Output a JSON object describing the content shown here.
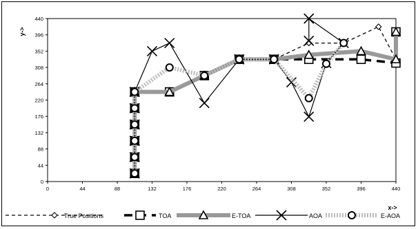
{
  "chart_data": {
    "type": "line",
    "xlabel": "x->",
    "ylabel": "y->",
    "xlim": [
      0,
      440
    ],
    "ylim": [
      0,
      440
    ],
    "xticks": [
      0,
      44,
      88,
      132,
      176,
      220,
      264,
      308,
      352,
      396,
      440
    ],
    "yticks": [
      0,
      44,
      88,
      132,
      176,
      220,
      264,
      308,
      352,
      396,
      440
    ],
    "grid": false,
    "legend": "bottom",
    "series": [
      {
        "name": "True Positions",
        "style": "dashed",
        "marker": "diamond",
        "color": "#000000",
        "points": [
          [
            110,
            22
          ],
          [
            110,
            66
          ],
          [
            110,
            110
          ],
          [
            110,
            154
          ],
          [
            110,
            198
          ],
          [
            110,
            242
          ],
          [
            154,
            242
          ],
          [
            198,
            286
          ],
          [
            242,
            330
          ],
          [
            286,
            330
          ],
          [
            330,
            374
          ],
          [
            374,
            374
          ],
          [
            418,
            418
          ],
          [
            440,
            330
          ]
        ]
      },
      {
        "name": "TOA",
        "style": "dashed-thick",
        "marker": "square",
        "color": "#000000",
        "points": [
          [
            110,
            22
          ],
          [
            110,
            66
          ],
          [
            110,
            110
          ],
          [
            110,
            154
          ],
          [
            110,
            198
          ],
          [
            110,
            242
          ],
          [
            154,
            242
          ],
          [
            198,
            286
          ],
          [
            242,
            330
          ],
          [
            286,
            330
          ],
          [
            330,
            330
          ],
          [
            396,
            330
          ],
          [
            440,
            320
          ],
          [
            440,
            404
          ]
        ]
      },
      {
        "name": "E-TOA",
        "style": "solid-thick",
        "marker": "triangle",
        "color": "#999999",
        "points": [
          [
            110,
            22
          ],
          [
            110,
            66
          ],
          [
            110,
            110
          ],
          [
            110,
            154
          ],
          [
            110,
            198
          ],
          [
            110,
            242
          ],
          [
            154,
            242
          ],
          [
            198,
            286
          ],
          [
            242,
            330
          ],
          [
            286,
            330
          ],
          [
            330,
            342
          ],
          [
            396,
            352
          ],
          [
            440,
            330
          ],
          [
            440,
            404
          ]
        ]
      },
      {
        "name": "AOA",
        "style": "solid",
        "marker": "x",
        "color": "#000000",
        "points": [
          [
            110,
            22
          ],
          [
            110,
            66
          ],
          [
            110,
            110
          ],
          [
            110,
            154
          ],
          [
            110,
            198
          ],
          [
            110,
            242
          ],
          [
            132,
            352
          ],
          [
            154,
            374
          ],
          [
            198,
            212
          ],
          [
            242,
            330
          ],
          [
            286,
            330
          ],
          [
            308,
            268
          ],
          [
            330,
            175
          ],
          [
            352,
            320
          ],
          [
            374,
            374
          ],
          [
            330,
            440
          ],
          [
            330,
            380
          ]
        ]
      },
      {
        "name": "E-AOA",
        "style": "dotted-thick",
        "marker": "circle",
        "color": "#bbbbbb",
        "points": [
          [
            110,
            22
          ],
          [
            110,
            66
          ],
          [
            110,
            110
          ],
          [
            110,
            154
          ],
          [
            110,
            198
          ],
          [
            110,
            242
          ],
          [
            154,
            308
          ],
          [
            198,
            286
          ],
          [
            242,
            330
          ],
          [
            286,
            330
          ],
          [
            330,
            225
          ],
          [
            352,
            318
          ],
          [
            374,
            374
          ]
        ]
      }
    ]
  }
}
